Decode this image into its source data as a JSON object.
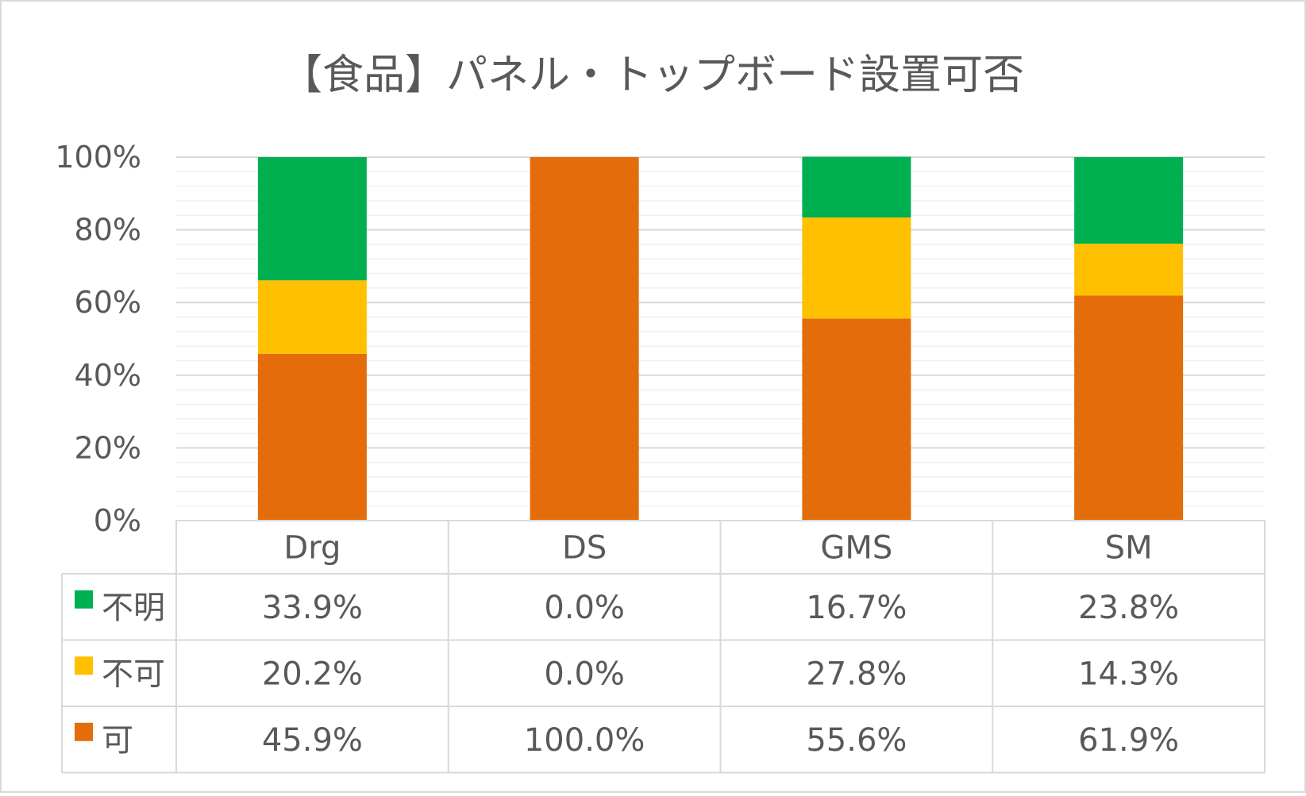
{
  "chart_data": {
    "type": "bar",
    "stacked": true,
    "title": "【食品】パネル・トップボード設置可否",
    "categories": [
      "Drg",
      "DS",
      "GMS",
      "SM"
    ],
    "series": [
      {
        "name": "不明",
        "color": "#00B050",
        "values": [
          33.9,
          0.0,
          16.7,
          23.8
        ],
        "labels": [
          "33.9%",
          "0.0%",
          "16.7%",
          "23.8%"
        ]
      },
      {
        "name": "不可",
        "color": "#FFC000",
        "values": [
          20.2,
          0.0,
          27.8,
          14.3
        ],
        "labels": [
          "20.2%",
          "0.0%",
          "27.8%",
          "14.3%"
        ]
      },
      {
        "name": "可",
        "color": "#E46C0A",
        "values": [
          45.9,
          100.0,
          55.6,
          61.9
        ],
        "labels": [
          "45.9%",
          "100.0%",
          "55.6%",
          "61.9%"
        ]
      }
    ],
    "stack_order_bottom_to_top": [
      "可",
      "不可",
      "不明"
    ],
    "ylim": [
      0,
      100
    ],
    "yticks": [
      "0%",
      "20%",
      "40%",
      "60%",
      "80%",
      "100%"
    ],
    "grid": true,
    "legend": "data-table",
    "data_table": true
  }
}
